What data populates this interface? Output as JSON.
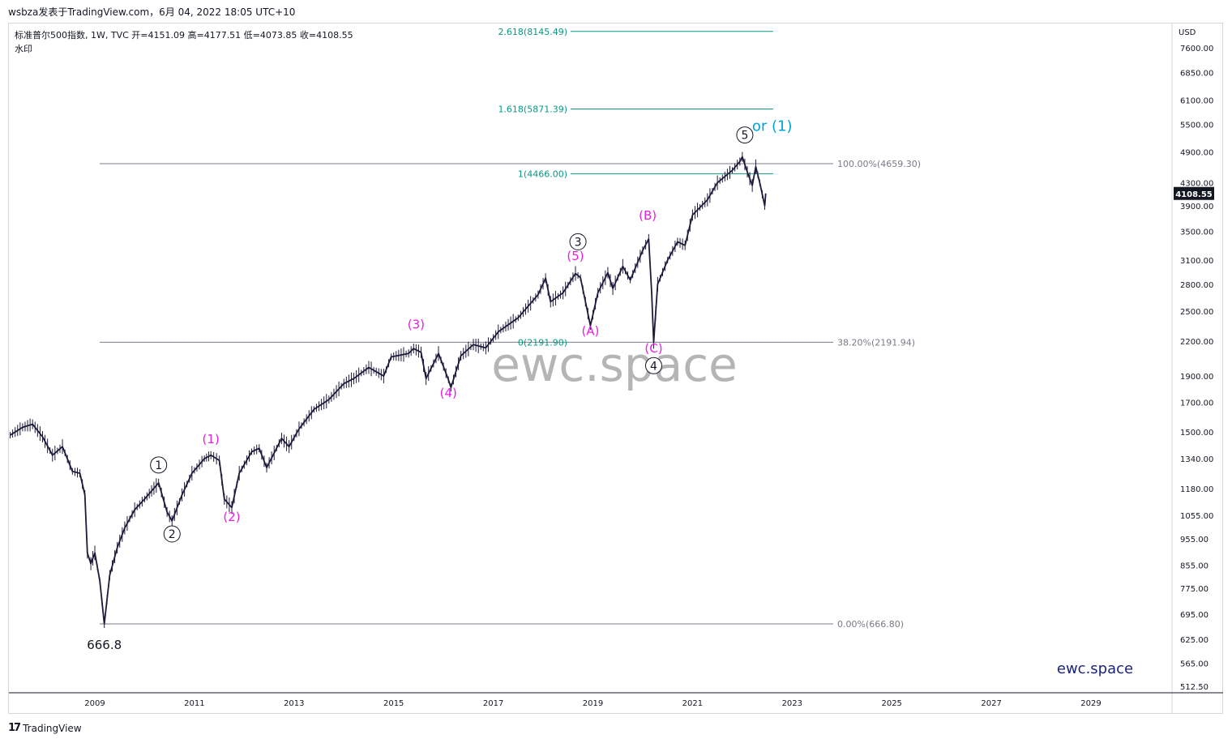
{
  "header": {
    "publish_line": "wsbza发表于TradingView.com，6月 04, 2022 18:05 UTC+10"
  },
  "legend": {
    "line1": "标准普尔500指数, 1W, TVC  开=4151.09  高=4177.51  低=4073.85  收=4108.55",
    "line2": "水印"
  },
  "footer": {
    "brand": "TradingView",
    "logo_icon": "tradingview-logo-icon"
  },
  "chart_data": {
    "type": "line",
    "title": "标准普尔500指数, 1W, TVC",
    "currency": "USD",
    "last_price_label": "4108.55",
    "last_price_color": "#131722",
    "y_scale": "log",
    "ylim": [
      480,
      9100
    ],
    "xlim": [
      2007.3,
      2030.7
    ],
    "y_ticks": [
      7600,
      6850,
      6100,
      5500,
      4900,
      4300,
      3900,
      3500,
      3100,
      2800,
      2500,
      2200,
      1900,
      1700,
      1500,
      1340,
      1180,
      1055,
      955,
      855,
      775,
      695,
      625,
      565,
      512.5
    ],
    "y_tick_labels": [
      "7600.00",
      "6850.00",
      "6100.00",
      "5500.00",
      "4900.00",
      "4300.00",
      "3900.00",
      "3500.00",
      "3100.00",
      "2800.00",
      "2500.00",
      "2200.00",
      "1900.00",
      "1700.00",
      "1500.00",
      "1340.00",
      "1180.00",
      "1055.00",
      "955.00",
      "855.00",
      "775.00",
      "695.00",
      "625.00",
      "565.00",
      "512.50"
    ],
    "x_ticks": [
      2009,
      2011,
      2013,
      2015,
      2017,
      2019,
      2021,
      2023,
      2025,
      2027,
      2029
    ],
    "x_tick_labels": [
      "2009",
      "2011",
      "2013",
      "2015",
      "2017",
      "2019",
      "2021",
      "2023",
      "2025",
      "2027",
      "2029"
    ],
    "price_path": [
      [
        2007.3,
        1480
      ],
      [
        2007.55,
        1530
      ],
      [
        2007.75,
        1550
      ],
      [
        2007.95,
        1470
      ],
      [
        2008.15,
        1360
      ],
      [
        2008.35,
        1410
      ],
      [
        2008.55,
        1270
      ],
      [
        2008.7,
        1260
      ],
      [
        2008.8,
        1150
      ],
      [
        2008.85,
        900
      ],
      [
        2008.92,
        860
      ],
      [
        2009.0,
        900
      ],
      [
        2009.1,
        800
      ],
      [
        2009.19,
        666.8
      ],
      [
        2009.3,
        820
      ],
      [
        2009.45,
        920
      ],
      [
        2009.6,
        1000
      ],
      [
        2009.8,
        1080
      ],
      [
        2010.0,
        1130
      ],
      [
        2010.28,
        1210
      ],
      [
        2010.45,
        1070
      ],
      [
        2010.55,
        1030
      ],
      [
        2010.75,
        1150
      ],
      [
        2010.95,
        1260
      ],
      [
        2011.2,
        1340
      ],
      [
        2011.33,
        1360
      ],
      [
        2011.5,
        1330
      ],
      [
        2011.6,
        1130
      ],
      [
        2011.75,
        1090
      ],
      [
        2011.9,
        1260
      ],
      [
        2012.15,
        1380
      ],
      [
        2012.3,
        1400
      ],
      [
        2012.45,
        1290
      ],
      [
        2012.75,
        1460
      ],
      [
        2012.9,
        1410
      ],
      [
        2013.1,
        1520
      ],
      [
        2013.4,
        1650
      ],
      [
        2013.7,
        1720
      ],
      [
        2014.0,
        1840
      ],
      [
        2014.2,
        1880
      ],
      [
        2014.5,
        1970
      ],
      [
        2014.8,
        1900
      ],
      [
        2014.95,
        2060
      ],
      [
        2015.3,
        2090
      ],
      [
        2015.4,
        2134
      ],
      [
        2015.55,
        2100
      ],
      [
        2015.65,
        1880
      ],
      [
        2015.9,
        2090
      ],
      [
        2016.1,
        1870
      ],
      [
        2016.15,
        1810
      ],
      [
        2016.35,
        2070
      ],
      [
        2016.6,
        2170
      ],
      [
        2016.85,
        2140
      ],
      [
        2017.1,
        2290
      ],
      [
        2017.5,
        2430
      ],
      [
        2017.9,
        2680
      ],
      [
        2018.05,
        2872
      ],
      [
        2018.15,
        2600
      ],
      [
        2018.4,
        2700
      ],
      [
        2018.65,
        2930
      ],
      [
        2018.75,
        2880
      ],
      [
        2018.95,
        2350
      ],
      [
        2019.1,
        2700
      ],
      [
        2019.3,
        2940
      ],
      [
        2019.4,
        2750
      ],
      [
        2019.6,
        3020
      ],
      [
        2019.75,
        2850
      ],
      [
        2020.0,
        3230
      ],
      [
        2020.12,
        3390
      ],
      [
        2020.18,
        2700
      ],
      [
        2020.22,
        2191.9
      ],
      [
        2020.3,
        2800
      ],
      [
        2020.5,
        3100
      ],
      [
        2020.7,
        3350
      ],
      [
        2020.85,
        3300
      ],
      [
        2021.0,
        3750
      ],
      [
        2021.3,
        4000
      ],
      [
        2021.5,
        4300
      ],
      [
        2021.8,
        4530
      ],
      [
        2021.95,
        4700
      ],
      [
        2022.0,
        4796
      ],
      [
        2022.1,
        4500
      ],
      [
        2022.2,
        4250
      ],
      [
        2022.27,
        4600
      ],
      [
        2022.35,
        4300
      ],
      [
        2022.45,
        3900
      ],
      [
        2022.47,
        4108.55
      ]
    ],
    "fib_retracement": {
      "levels": [
        {
          "label": "100.00%(4659.30)",
          "value": 4659.3
        },
        {
          "label": "38.20%(2191.94)",
          "value": 2191.94
        },
        {
          "label": "0.00%(666.80)",
          "value": 666.8
        }
      ],
      "x_start": 2008.9,
      "x_end": 2023.9,
      "line_color": "#787b86",
      "text_color": "#787b86"
    },
    "fib_extension": {
      "levels": [
        {
          "label": "2.618(8145.49)",
          "value": 8145.49
        },
        {
          "label": "1.618(5871.39)",
          "value": 5871.39
        },
        {
          "label": "1(4466.00)",
          "value": 4466.0
        },
        {
          "label": "0(2191.90)",
          "value": 2191.9
        }
      ],
      "x_start": 2018.5,
      "x_end": 2022.75,
      "line_color": "#089981",
      "text_color": "#089981"
    },
    "wave_labels_major": [
      {
        "text": "1",
        "x": 2010.28,
        "y": 1305
      },
      {
        "text": "2",
        "x": 2010.55,
        "y": 975
      },
      {
        "text": "3",
        "x": 2018.7,
        "y": 3350
      },
      {
        "text": "4",
        "x": 2020.22,
        "y": 1985
      },
      {
        "text": "5",
        "x": 2022.05,
        "y": 5260
      }
    ],
    "wave_labels_minor": [
      {
        "text": "(1)",
        "x": 2011.33,
        "y": 1430
      },
      {
        "text": "(2)",
        "x": 2011.75,
        "y": 1030
      },
      {
        "text": "(3)",
        "x": 2015.45,
        "y": 2320
      },
      {
        "text": "(4)",
        "x": 2016.1,
        "y": 1740
      },
      {
        "text": "(5)",
        "x": 2018.65,
        "y": 3100
      },
      {
        "text": "(A)",
        "x": 2018.95,
        "y": 2260
      },
      {
        "text": "(B)",
        "x": 2020.1,
        "y": 3680
      },
      {
        "text": "(C)",
        "x": 2020.22,
        "y": 2100
      }
    ],
    "alt_label": {
      "text": "or (1)",
      "x": 2022.6,
      "y": 5350,
      "color": "#00a3d9"
    },
    "low_label": {
      "text": "666.8",
      "x": 2009.19,
      "y": 600
    },
    "watermark": "ewc.space",
    "brand_text": "ewc.space",
    "minor_label_color": "#e91ee0",
    "price_color": "#1c1b3a"
  }
}
